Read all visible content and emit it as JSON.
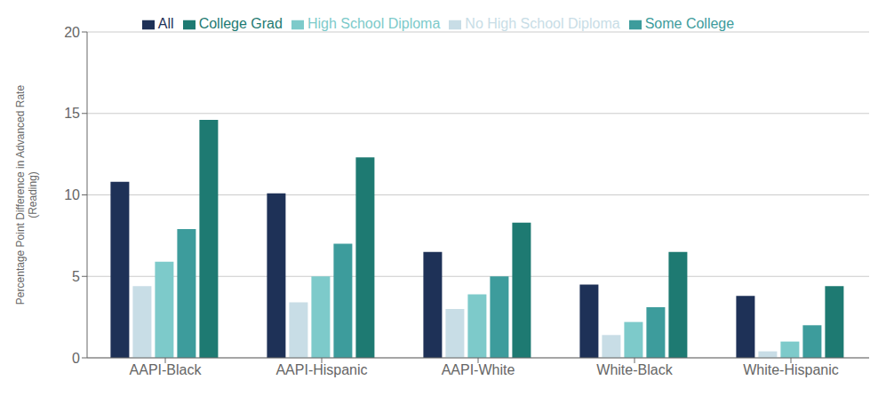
{
  "chart_data": {
    "type": "bar",
    "categories": [
      "AAPI-Black",
      "AAPI-Hispanic",
      "AAPI-White",
      "White-Black",
      "White-Hispanic"
    ],
    "series": [
      {
        "name": "All",
        "color": "#1e3157",
        "values": [
          10.8,
          10.1,
          6.5,
          4.5,
          3.8
        ]
      },
      {
        "name": "No High School Diploma",
        "color": "#c8dde6",
        "values": [
          4.4,
          3.4,
          3.0,
          1.4,
          0.4
        ]
      },
      {
        "name": "High School Diploma",
        "color": "#7dcaca",
        "values": [
          5.9,
          5.0,
          3.9,
          2.2,
          1.0
        ]
      },
      {
        "name": "Some College",
        "color": "#3d9c9c",
        "values": [
          7.9,
          7.0,
          5.0,
          3.1,
          2.0
        ]
      },
      {
        "name": "College Grad",
        "color": "#1e7a72",
        "values": [
          14.6,
          12.3,
          8.3,
          6.5,
          4.4
        ]
      }
    ],
    "ylabel": "Percentage Point Difference in Advanced Rate\n(Reading)",
    "ylim": [
      0,
      20
    ],
    "yticks": [
      0,
      5,
      10,
      15,
      20
    ],
    "grid": true,
    "legend": "top"
  }
}
